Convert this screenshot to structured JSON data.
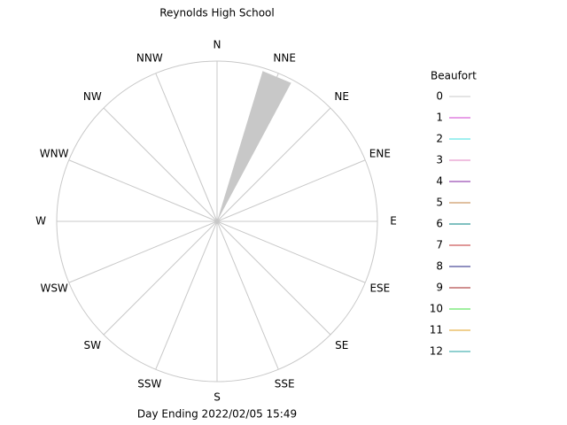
{
  "chart_data": {
    "type": "windrose",
    "title": "Reynolds High School",
    "caption": "Day Ending 2022/02/05 15:49",
    "directions": [
      "N",
      "NNE",
      "NE",
      "ENE",
      "E",
      "ESE",
      "SE",
      "SSE",
      "S",
      "SSW",
      "SW",
      "WSW",
      "W",
      "WNW",
      "NW",
      "NNW"
    ],
    "rlim": [
      0,
      100
    ],
    "legend_title": "Beaufort",
    "series": [
      {
        "name": "0",
        "color": "#c8c8c8",
        "values": [
          0,
          98,
          0,
          0,
          0,
          0,
          0,
          0,
          0,
          0,
          0,
          0,
          0,
          0,
          0,
          0
        ]
      },
      {
        "name": "1",
        "color": "#d040d0",
        "values": [
          0,
          0,
          0,
          0,
          0,
          0,
          0,
          0,
          0,
          0,
          0,
          0,
          0,
          0,
          0,
          0
        ]
      },
      {
        "name": "2",
        "color": "#40e0e0",
        "values": [
          0,
          0,
          0,
          0,
          0,
          0,
          0,
          0,
          0,
          0,
          0,
          0,
          0,
          0,
          0,
          0
        ]
      },
      {
        "name": "3",
        "color": "#e080c0",
        "values": [
          0,
          0,
          0,
          0,
          0,
          0,
          0,
          0,
          0,
          0,
          0,
          0,
          0,
          0,
          0,
          0
        ]
      },
      {
        "name": "4",
        "color": "#8020a0",
        "values": [
          0,
          0,
          0,
          0,
          0,
          0,
          0,
          0,
          0,
          0,
          0,
          0,
          0,
          0,
          0,
          0
        ]
      },
      {
        "name": "5",
        "color": "#c08040",
        "values": [
          0,
          0,
          0,
          0,
          0,
          0,
          0,
          0,
          0,
          0,
          0,
          0,
          0,
          0,
          0,
          0
        ]
      },
      {
        "name": "6",
        "color": "#008080",
        "values": [
          0,
          0,
          0,
          0,
          0,
          0,
          0,
          0,
          0,
          0,
          0,
          0,
          0,
          0,
          0,
          0
        ]
      },
      {
        "name": "7",
        "color": "#c03030",
        "values": [
          0,
          0,
          0,
          0,
          0,
          0,
          0,
          0,
          0,
          0,
          0,
          0,
          0,
          0,
          0,
          0
        ]
      },
      {
        "name": "8",
        "color": "#202080",
        "values": [
          0,
          0,
          0,
          0,
          0,
          0,
          0,
          0,
          0,
          0,
          0,
          0,
          0,
          0,
          0,
          0
        ]
      },
      {
        "name": "9",
        "color": "#a02020",
        "values": [
          0,
          0,
          0,
          0,
          0,
          0,
          0,
          0,
          0,
          0,
          0,
          0,
          0,
          0,
          0,
          0
        ]
      },
      {
        "name": "10",
        "color": "#40e040",
        "values": [
          0,
          0,
          0,
          0,
          0,
          0,
          0,
          0,
          0,
          0,
          0,
          0,
          0,
          0,
          0,
          0
        ]
      },
      {
        "name": "11",
        "color": "#e0a020",
        "values": [
          0,
          0,
          0,
          0,
          0,
          0,
          0,
          0,
          0,
          0,
          0,
          0,
          0,
          0,
          0,
          0
        ]
      },
      {
        "name": "12",
        "color": "#20a0a0",
        "values": [
          0,
          0,
          0,
          0,
          0,
          0,
          0,
          0,
          0,
          0,
          0,
          0,
          0,
          0,
          0,
          0
        ]
      }
    ]
  }
}
